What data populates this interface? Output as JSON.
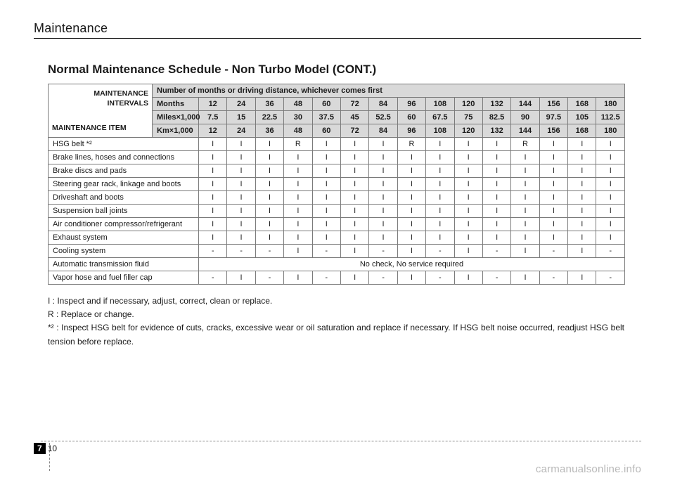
{
  "header": {
    "section": "Maintenance"
  },
  "title": "Normal Maintenance Schedule - Non Turbo Model (CONT.)",
  "table": {
    "corner": {
      "intervals_label": "MAINTENANCE INTERVALS",
      "item_label": "MAINTENANCE ITEM"
    },
    "group_header": "Number of months or driving distance, whichever comes first",
    "unit_rows": [
      {
        "label": "Months",
        "values": [
          "12",
          "24",
          "36",
          "48",
          "60",
          "72",
          "84",
          "96",
          "108",
          "120",
          "132",
          "144",
          "156",
          "168",
          "180"
        ]
      },
      {
        "label": "Miles×1,000",
        "values": [
          "7.5",
          "15",
          "22.5",
          "30",
          "37.5",
          "45",
          "52.5",
          "60",
          "67.5",
          "75",
          "82.5",
          "90",
          "97.5",
          "105",
          "112.5"
        ]
      },
      {
        "label": "Km×1,000",
        "values": [
          "12",
          "24",
          "36",
          "48",
          "60",
          "72",
          "84",
          "96",
          "108",
          "120",
          "132",
          "144",
          "156",
          "168",
          "180"
        ]
      }
    ],
    "items": [
      {
        "label": "HSG belt *²",
        "values": [
          "I",
          "I",
          "I",
          "R",
          "I",
          "I",
          "I",
          "R",
          "I",
          "I",
          "I",
          "R",
          "I",
          "I",
          "I"
        ]
      },
      {
        "label": "Brake lines, hoses and connections",
        "values": [
          "I",
          "I",
          "I",
          "I",
          "I",
          "I",
          "I",
          "I",
          "I",
          "I",
          "I",
          "I",
          "I",
          "I",
          "I"
        ]
      },
      {
        "label": "Brake discs and pads",
        "values": [
          "I",
          "I",
          "I",
          "I",
          "I",
          "I",
          "I",
          "I",
          "I",
          "I",
          "I",
          "I",
          "I",
          "I",
          "I"
        ]
      },
      {
        "label": "Steering gear rack, linkage and boots",
        "values": [
          "I",
          "I",
          "I",
          "I",
          "I",
          "I",
          "I",
          "I",
          "I",
          "I",
          "I",
          "I",
          "I",
          "I",
          "I"
        ]
      },
      {
        "label": "Driveshaft and boots",
        "values": [
          "I",
          "I",
          "I",
          "I",
          "I",
          "I",
          "I",
          "I",
          "I",
          "I",
          "I",
          "I",
          "I",
          "I",
          "I"
        ]
      },
      {
        "label": "Suspension ball joints",
        "values": [
          "I",
          "I",
          "I",
          "I",
          "I",
          "I",
          "I",
          "I",
          "I",
          "I",
          "I",
          "I",
          "I",
          "I",
          "I"
        ]
      },
      {
        "label": "Air conditioner compressor/refrigerant",
        "values": [
          "I",
          "I",
          "I",
          "I",
          "I",
          "I",
          "I",
          "I",
          "I",
          "I",
          "I",
          "I",
          "I",
          "I",
          "I"
        ]
      },
      {
        "label": "Exhaust system",
        "values": [
          "I",
          "I",
          "I",
          "I",
          "I",
          "I",
          "I",
          "I",
          "I",
          "I",
          "I",
          "I",
          "I",
          "I",
          "I"
        ]
      },
      {
        "label": "Cooling system",
        "values": [
          "-",
          "-",
          "-",
          "I",
          "-",
          "I",
          "-",
          "I",
          "-",
          "I",
          "-",
          "I",
          "-",
          "I",
          "-"
        ]
      },
      {
        "label": "Automatic transmission fluid",
        "merged": true,
        "merged_text": "No check, No service required"
      },
      {
        "label": "Vapor hose and fuel filler cap",
        "values": [
          "-",
          "I",
          "-",
          "I",
          "-",
          "I",
          "-",
          "I",
          "-",
          "I",
          "-",
          "I",
          "-",
          "I",
          "-"
        ]
      }
    ]
  },
  "legend": {
    "i": "I  : Inspect and if necessary, adjust, correct, clean or replace.",
    "r": "R : Replace or change.",
    "n2": "*² : Inspect HSG belt for evidence of cuts, cracks, excessive wear or oil saturation and replace if necessary. If HSG belt noise occurred, readjust HSG belt tension before replace."
  },
  "footer": {
    "chapter": "7",
    "page": "10"
  },
  "watermark": "carmanualsonline.info",
  "style": {
    "header_bg": "#d9d9d9",
    "border_color": "#7a7a7a",
    "text_color": "#1a1a1a",
    "watermark_color": "#b8b8b8"
  }
}
